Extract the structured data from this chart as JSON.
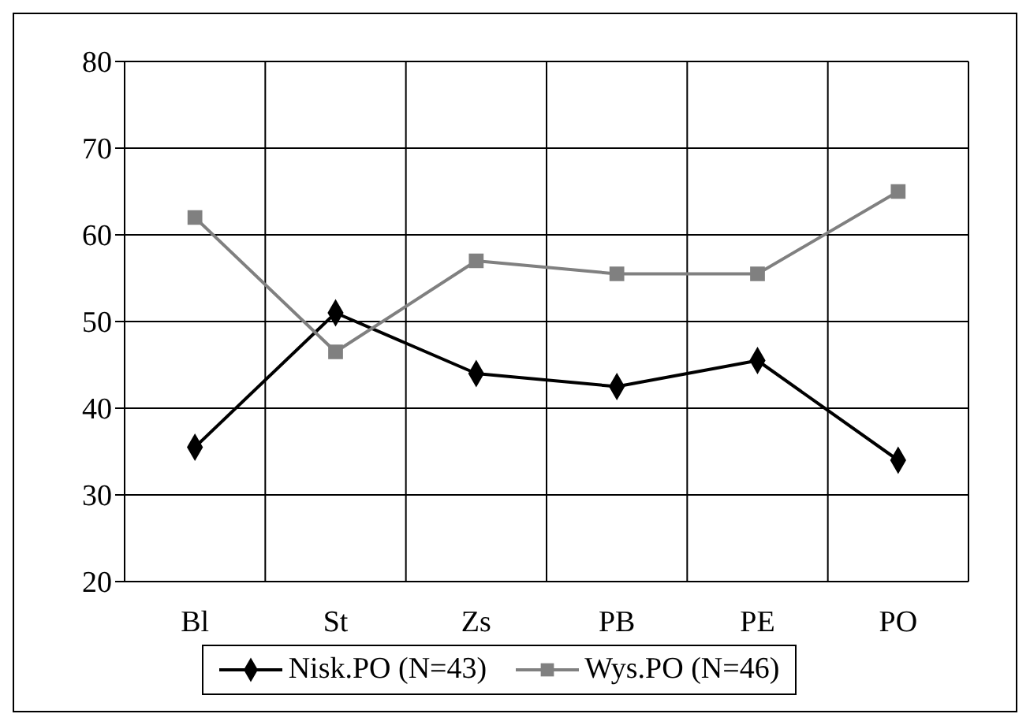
{
  "chart_data": {
    "type": "line",
    "categories": [
      "Bl",
      "St",
      "Zs",
      "PB",
      "PE",
      "PO"
    ],
    "series": [
      {
        "name": "Nisk.PO (N=43)",
        "color": "#000000",
        "marker": "diamond",
        "values": [
          35.5,
          51,
          44,
          42.5,
          45.5,
          34
        ]
      },
      {
        "name": "Wys.PO (N=46)",
        "color": "#808080",
        "marker": "square",
        "values": [
          62,
          46.5,
          57,
          55.5,
          55.5,
          65
        ]
      }
    ],
    "ylim": [
      20,
      80
    ],
    "yticks": [
      20,
      30,
      40,
      50,
      60,
      70,
      80
    ],
    "grid": true,
    "legend": "bottom"
  }
}
